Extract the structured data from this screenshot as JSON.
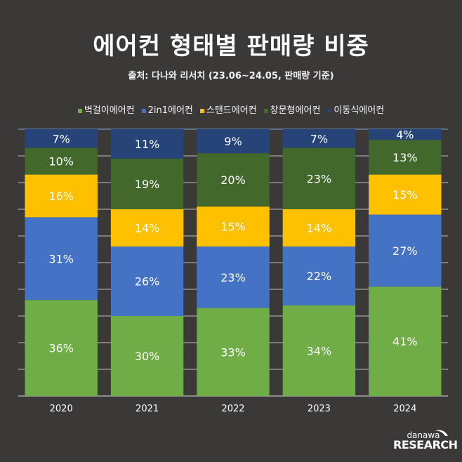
{
  "header": {
    "title": "에어컨 형태별 판매량 비중",
    "subtitle": "출처: 다나와 리서치 (23.06~24.05, 판매량 기준)"
  },
  "legend": [
    {
      "label": "벽걸이에어컨",
      "color": "#70AD47"
    },
    {
      "label": "2in1에어컨",
      "color": "#4472C4"
    },
    {
      "label": "스탠드에어컨",
      "color": "#FFC000"
    },
    {
      "label": "창문형에어컨",
      "color": "#43682B"
    },
    {
      "label": "이동식에어컨",
      "color": "#264478"
    }
  ],
  "logo": {
    "top": "danawa",
    "bottom": "RESEARCH"
  },
  "chart_data": {
    "type": "bar",
    "stacked": true,
    "normalized": true,
    "title": "에어컨 형태별 판매량 비중",
    "subtitle": "출처: 다나와 리서치 (23.06~24.05, 판매량 기준)",
    "xlabel": "",
    "ylabel": "",
    "ylim": [
      0,
      100
    ],
    "grid": true,
    "legend_position": "top",
    "categories": [
      "2020",
      "2021",
      "2022",
      "2023",
      "2024"
    ],
    "series": [
      {
        "name": "벽걸이에어컨",
        "color": "#70AD47",
        "values": [
          36,
          30,
          33,
          34,
          41
        ]
      },
      {
        "name": "2in1에어컨",
        "color": "#4472C4",
        "values": [
          31,
          26,
          23,
          22,
          27
        ]
      },
      {
        "name": "스탠드에어컨",
        "color": "#FFC000",
        "values": [
          16,
          14,
          15,
          14,
          15
        ]
      },
      {
        "name": "창문형에어컨",
        "color": "#43682B",
        "values": [
          10,
          19,
          20,
          23,
          13
        ]
      },
      {
        "name": "이동식에어컨",
        "color": "#264478",
        "values": [
          7,
          11,
          9,
          7,
          4
        ]
      }
    ],
    "label_suffix": "%"
  }
}
